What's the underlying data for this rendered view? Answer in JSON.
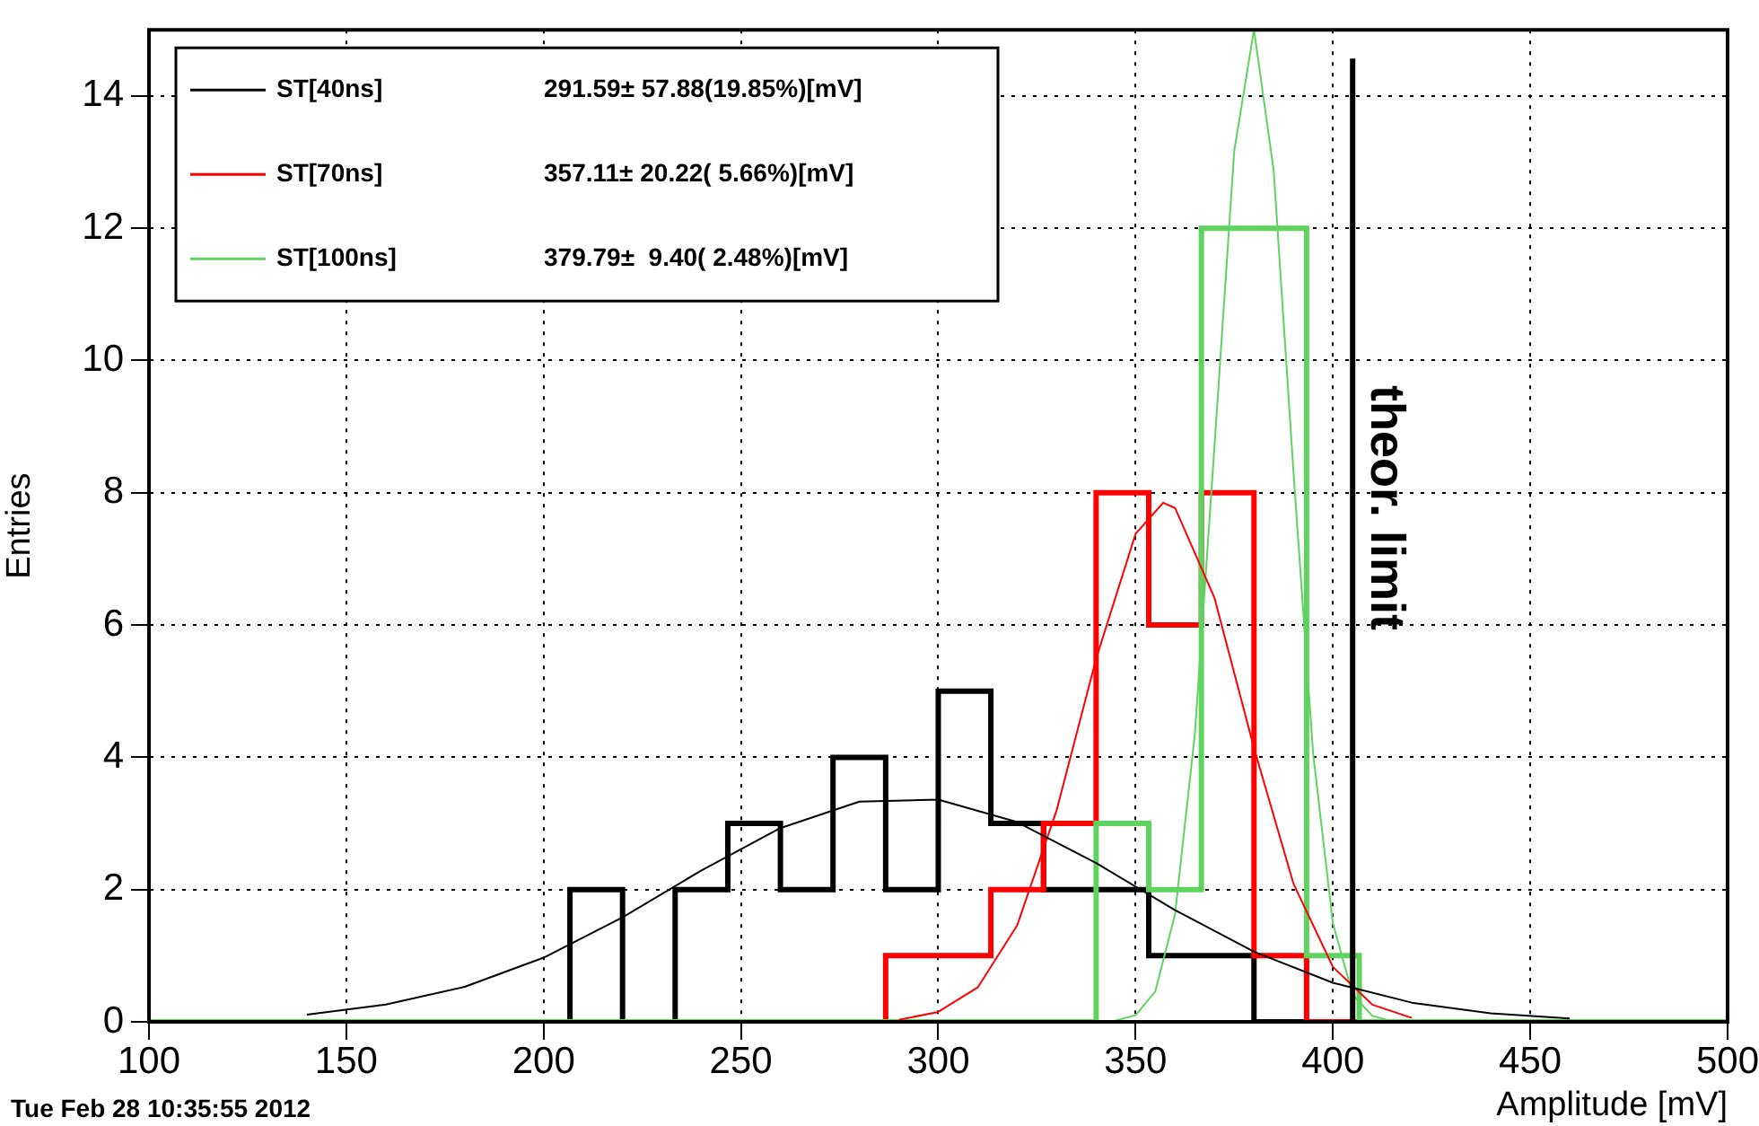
{
  "chart_data": {
    "type": "histogram",
    "xlabel": "Amplitude [mV]",
    "ylabel": "Entries",
    "series": [
      {
        "bins": [
          100,
          113.33,
          126.67,
          140,
          153.33,
          166.67,
          180,
          193.33,
          206.67,
          220,
          233.33,
          246.67,
          260,
          273.33,
          286.67,
          300,
          313.33,
          326.67,
          340,
          353.33,
          366.67,
          380,
          393.33,
          406.67,
          420,
          433.33,
          446.67,
          460,
          473.33,
          486.67,
          500
        ],
        "color": "#000000",
        "values": [
          0,
          0,
          0,
          0,
          0,
          0,
          0,
          0,
          2,
          0,
          2,
          3,
          2,
          4,
          2,
          5,
          3,
          2,
          2,
          1,
          1,
          0,
          0,
          0,
          0,
          0,
          0,
          0,
          0,
          0
        ]
      },
      {
        "bins": [
          100,
          113.33,
          126.67,
          140,
          153.33,
          166.67,
          180,
          193.33,
          206.67,
          220,
          233.33,
          246.67,
          260,
          273.33,
          286.67,
          300,
          313.33,
          326.67,
          340,
          353.33,
          366.67,
          380,
          393.33,
          406.67,
          420,
          433.33,
          446.67,
          460,
          473.33,
          486.67,
          500
        ],
        "color": "#ff0000",
        "values": [
          0,
          0,
          0,
          0,
          0,
          0,
          0,
          0,
          0,
          0,
          0,
          0,
          0,
          0,
          1,
          1,
          2,
          3,
          8,
          6,
          8,
          1,
          0,
          0,
          0,
          0,
          0,
          0,
          0,
          0
        ]
      },
      {
        "bins": [
          100,
          113.33,
          126.67,
          140,
          153.33,
          166.67,
          180,
          193.33,
          206.67,
          220,
          233.33,
          246.67,
          260,
          273.33,
          286.67,
          300,
          313.33,
          326.67,
          340,
          353.33,
          366.67,
          380,
          393.33,
          406.67,
          420,
          433.33,
          446.67,
          460,
          473.33,
          486.67,
          500
        ],
        "color": "#5fd35f",
        "values": [
          0,
          0,
          0,
          0,
          0,
          0,
          0,
          0,
          0,
          0,
          0,
          0,
          0,
          0,
          0,
          0,
          0,
          0,
          3,
          2,
          12,
          12,
          1,
          0,
          0,
          0,
          0,
          0,
          0,
          0
        ]
      },
      {
        "type": "line",
        "name": "ST[40ns]",
        "color": "#000000",
        "x": [
          140,
          160,
          180,
          200,
          220,
          240,
          260,
          280,
          300,
          320,
          340,
          360,
          380,
          400,
          420,
          440,
          460
        ],
        "values": [
          0.11,
          0.26,
          0.53,
          0.97,
          1.58,
          2.29,
          2.93,
          3.33,
          3.36,
          3.02,
          2.4,
          1.69,
          1.06,
          0.59,
          0.29,
          0.13,
          0.05
        ]
      },
      {
        "type": "line",
        "name": "ST[70ns]",
        "color": "#ff0000",
        "x": [
          290,
          300,
          310,
          320,
          330,
          340,
          350,
          357,
          360,
          370,
          380,
          390,
          400,
          410,
          420
        ],
        "values": [
          0.03,
          0.15,
          0.52,
          1.46,
          3.2,
          5.49,
          7.38,
          7.85,
          7.77,
          6.41,
          4.14,
          2.09,
          0.83,
          0.26,
          0.06
        ]
      },
      {
        "type": "line",
        "name": "ST[100ns]",
        "color": "#5fd35f",
        "x": [
          345,
          350,
          355,
          360,
          365,
          370,
          375,
          380,
          385,
          390,
          395,
          400,
          405,
          410,
          415
        ],
        "values": [
          0.02,
          0.1,
          0.46,
          1.63,
          4.34,
          8.71,
          13.17,
          15,
          12.87,
          8.32,
          4.05,
          1.49,
          0.41,
          0.09,
          0.01
        ]
      }
    ],
    "annotations": [
      "291.59± 57.88(19.85%)[mV]",
      "357.11± 20.22( 5.66%)[mV]",
      "379.79±  9.40( 2.48%)[mV]",
      "Tue Feb 28 10:35:55 2012"
    ],
    "ref_lines": [
      {
        "axis": "x",
        "value": 405,
        "label": "theor. limit",
        "color": "#000000"
      }
    ],
    "xlim": [
      100,
      500
    ],
    "xticks": [
      100,
      150,
      200,
      250,
      300,
      350,
      400,
      450,
      500
    ],
    "ylim": [
      0,
      15
    ],
    "yticks": [
      0,
      2,
      4,
      6,
      8,
      10,
      12,
      14
    ],
    "grid": true,
    "legend": "top left"
  }
}
